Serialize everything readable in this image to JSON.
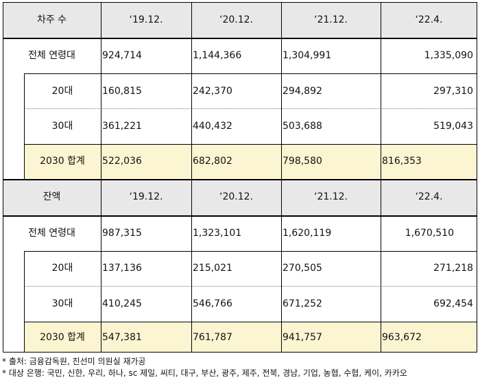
{
  "sections": [
    {
      "header": {
        "label": "차주 수",
        "periods": [
          "‘19.12.",
          "‘20.12.",
          "‘21.12.",
          "‘22.4."
        ]
      },
      "rows": [
        {
          "label": "전체 연령대",
          "values": [
            "924,714",
            "1,144,366",
            "1,304,991",
            "1,335,090"
          ]
        },
        {
          "label": "20대",
          "values": [
            "160,815",
            "242,370",
            "294,892",
            "297,310"
          ]
        },
        {
          "label": "30대",
          "values": [
            "361,221",
            "440,432",
            "503,688",
            "519,043"
          ]
        },
        {
          "label": "2030 합계",
          "values": [
            "522,036",
            "682,802",
            "798,580",
            "816,353"
          ]
        }
      ]
    },
    {
      "header": {
        "label": "잔액",
        "periods": [
          "‘19.12.",
          "‘20.12.",
          "‘21.12.",
          "‘22.4."
        ]
      },
      "rows": [
        {
          "label": "전체 연령대",
          "values": [
            "987,315",
            "1,323,101",
            "1,620,119",
            "1,670,510"
          ]
        },
        {
          "label": "20대",
          "values": [
            "137,136",
            "215,021",
            "270,505",
            "271,218"
          ]
        },
        {
          "label": "30대",
          "values": [
            "410,245",
            "546,766",
            "671,252",
            "692,454"
          ]
        },
        {
          "label": "2030 합계",
          "values": [
            "547,381",
            "761,787",
            "941,757",
            "963,672"
          ]
        }
      ]
    }
  ],
  "notes": [
    "* 출처: 금융감독원, 진선미 의원실 재가공",
    "* 대상 은행: 국민, 신한, 우리, 하나, sc 제일, 씨티, 대구, 부산, 광주, 제주, 전북, 경남, 기업, 농협, 수협, 케이, 카카오"
  ]
}
